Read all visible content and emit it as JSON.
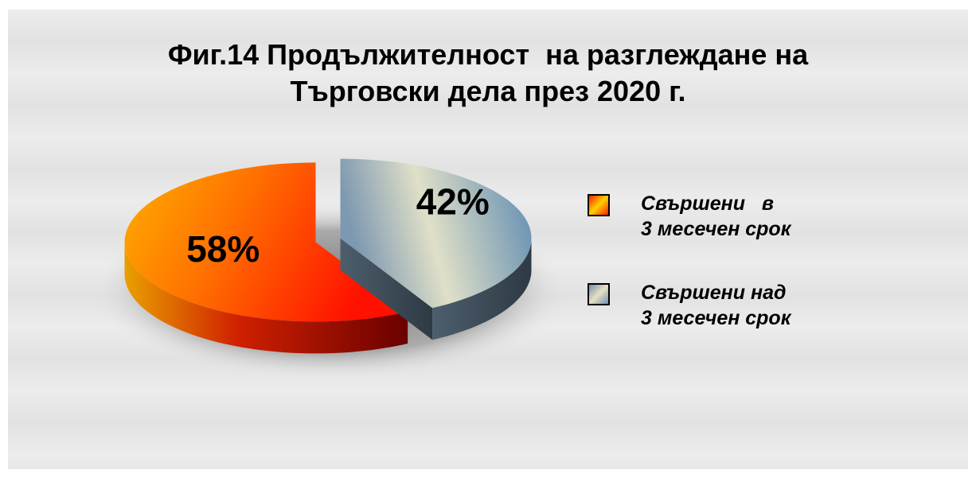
{
  "chart_data": {
    "type": "pie",
    "title": "Фиг.14 Продължителност  на разглеждане на\nТърговски дела през 2020 г.",
    "series": [
      {
        "name": "Свършени   в\n3 месечен срок",
        "values": [
          58
        ],
        "value_labels": [
          "58%"
        ],
        "color": "#ff5a00"
      },
      {
        "name": "Свършени над\n3 месечен срок",
        "values": [
          42
        ],
        "value_labels": [
          "42%"
        ],
        "color": "#8fa9c0"
      }
    ],
    "legend": "right"
  }
}
